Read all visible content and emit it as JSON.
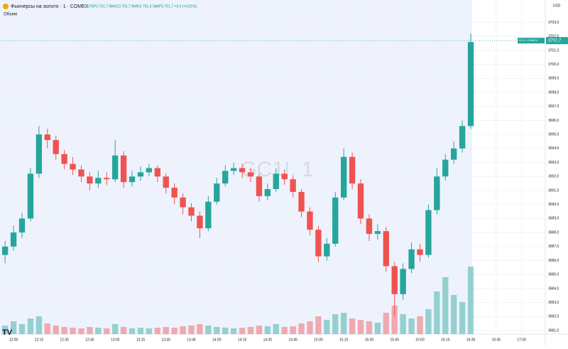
{
  "chart_data": {
    "type": "candlestick",
    "title": "Фьючерсы на золото · 1 · COMEX",
    "ohlc_legend": "ОТКР3 701,7  МАКС3 701,7  МИН3 701,0  ЗАКР3 701,7  +0,4 (+0,01%)",
    "volume_label": "Объем",
    "watermark": "GC1!, 1",
    "currency": "USD",
    "up_color": "#26a69a",
    "down_color": "#ef5350",
    "x": [
      715,
      720,
      725,
      730,
      735,
      740,
      745,
      750,
      755,
      760,
      765,
      770,
      775,
      780,
      785,
      790,
      795,
      800,
      805,
      810,
      815,
      820,
      825,
      830,
      835,
      840,
      845,
      850,
      855,
      860,
      865,
      870,
      875,
      880,
      885,
      890,
      895,
      900,
      905,
      910,
      915,
      920,
      925,
      930,
      935,
      940,
      945,
      950,
      955,
      960,
      965,
      970,
      975,
      980,
      985,
      990
    ],
    "open": [
      3686.4,
      3687.0,
      3688.0,
      3689.0,
      3692.2,
      3695.0,
      3694.6,
      3693.6,
      3692.9,
      3692.5,
      3692.0,
      3691.5,
      3691.9,
      3691.8,
      3693.5,
      3691.6,
      3692.0,
      3692.3,
      3692.6,
      3692.0,
      3691.2,
      3690.5,
      3689.8,
      3689.2,
      3688.3,
      3690.2,
      3691.5,
      3692.4,
      3692.6,
      3692.3,
      3692.0,
      3690.6,
      3691.1,
      3692.2,
      3691.8,
      3690.9,
      3689.5,
      3688.2,
      3686.3,
      3687.2,
      3690.5,
      3693.4,
      3691.5,
      3689.0,
      3687.9,
      3688.1,
      3685.6,
      3683.6,
      3685.4,
      3686.8,
      3686.4,
      3689.6,
      3692.0,
      3693.2,
      3694.0,
      3695.6
    ],
    "high": [
      3687.4,
      3688.5,
      3689.4,
      3692.6,
      3695.6,
      3695.4,
      3694.9,
      3693.9,
      3693.4,
      3692.8,
      3692.3,
      3692.4,
      3692.3,
      3694.6,
      3693.8,
      3692.4,
      3692.7,
      3692.9,
      3692.8,
      3692.2,
      3691.5,
      3690.8,
      3690.1,
      3689.5,
      3690.6,
      3691.9,
      3692.8,
      3693.0,
      3692.9,
      3692.6,
      3692.2,
      3691.5,
      3692.6,
      3692.5,
      3692.0,
      3691.1,
      3689.8,
      3688.5,
      3687.6,
      3690.9,
      3694.0,
      3693.7,
      3691.8,
      3689.3,
      3688.6,
      3688.4,
      3685.9,
      3685.8,
      3687.3,
      3687.2,
      3690.0,
      3692.6,
      3693.6,
      3694.5,
      3696.0,
      3702.2
    ],
    "low": [
      3685.8,
      3686.7,
      3687.6,
      3688.8,
      3691.9,
      3694.0,
      3693.2,
      3692.5,
      3692.1,
      3691.6,
      3691.0,
      3691.2,
      3691.4,
      3691.6,
      3691.2,
      3691.3,
      3691.7,
      3692.0,
      3691.6,
      3690.8,
      3690.0,
      3689.3,
      3688.8,
      3687.6,
      3688.1,
      3690.0,
      3691.3,
      3692.1,
      3691.9,
      3691.6,
      3690.2,
      3690.3,
      3690.9,
      3691.4,
      3690.5,
      3689.1,
      3687.8,
      3685.9,
      3686.0,
      3687.0,
      3690.3,
      3691.1,
      3688.6,
      3687.4,
      3687.5,
      3685.2,
      3682.0,
      3683.2,
      3685.1,
      3685.9,
      3686.2,
      3689.3,
      3691.7,
      3692.9,
      3693.7,
      3695.4
    ],
    "close": [
      3687.0,
      3688.0,
      3689.0,
      3692.2,
      3695.0,
      3694.6,
      3693.6,
      3692.9,
      3692.5,
      3692.0,
      3691.5,
      3691.9,
      3691.8,
      3693.5,
      3691.6,
      3692.0,
      3692.3,
      3692.6,
      3692.0,
      3691.2,
      3690.5,
      3689.8,
      3689.2,
      3688.3,
      3690.2,
      3691.5,
      3692.4,
      3692.6,
      3692.3,
      3692.0,
      3690.6,
      3691.1,
      3692.2,
      3691.8,
      3690.9,
      3689.5,
      3688.2,
      3686.3,
      3687.2,
      3690.5,
      3693.4,
      3691.5,
      3689.0,
      3687.9,
      3688.1,
      3685.6,
      3683.6,
      3685.4,
      3686.8,
      3686.4,
      3689.6,
      3692.0,
      3693.2,
      3694.0,
      3695.6,
      3701.6
    ],
    "volume": [
      12,
      18,
      14,
      22,
      25,
      15,
      12,
      10,
      9,
      8,
      10,
      9,
      8,
      14,
      10,
      8,
      9,
      8,
      9,
      10,
      9,
      11,
      12,
      14,
      12,
      10,
      9,
      8,
      9,
      10,
      12,
      11,
      14,
      10,
      11,
      15,
      18,
      25,
      20,
      28,
      30,
      22,
      20,
      18,
      16,
      30,
      40,
      28,
      22,
      25,
      35,
      60,
      80,
      55,
      45,
      95
    ],
    "last_price": 3701.7,
    "last_price_label": "3701,7",
    "last_price_symbol": "GC1!, COMEX",
    "xlim": [
      712,
      1034
    ],
    "ylim": [
      3680.75,
      3704.6
    ],
    "xticks": [
      {
        "value": 720,
        "label": "12:00"
      },
      {
        "value": 735,
        "label": "12:15"
      },
      {
        "value": 750,
        "label": "12:30"
      },
      {
        "value": 765,
        "label": "12:45"
      },
      {
        "value": 780,
        "label": "13:00"
      },
      {
        "value": 795,
        "label": "13:15"
      },
      {
        "value": 810,
        "label": "13:30"
      },
      {
        "value": 825,
        "label": "13:45"
      },
      {
        "value": 840,
        "label": "14:00"
      },
      {
        "value": 855,
        "label": "14:15"
      },
      {
        "value": 870,
        "label": "14:30"
      },
      {
        "value": 885,
        "label": "14:45"
      },
      {
        "value": 900,
        "label": "15:00"
      },
      {
        "value": 915,
        "label": "15:15"
      },
      {
        "value": 930,
        "label": "15:30"
      },
      {
        "value": 945,
        "label": "15:45"
      },
      {
        "value": 960,
        "label": "16:00"
      },
      {
        "value": 975,
        "label": "16:15"
      },
      {
        "value": 990,
        "label": "16:30"
      },
      {
        "value": 1005,
        "label": "16:45"
      },
      {
        "value": 1020,
        "label": "17:00"
      }
    ],
    "yticks": [
      {
        "value": 3703,
        "label": "3703,0"
      },
      {
        "value": 3702,
        "label": "3702,0"
      },
      {
        "value": 3701,
        "label": "3701,0"
      },
      {
        "value": 3700,
        "label": "3700,0"
      },
      {
        "value": 3699,
        "label": "3699,0"
      },
      {
        "value": 3698,
        "label": "3698,0"
      },
      {
        "value": 3697,
        "label": "3697,0"
      },
      {
        "value": 3696,
        "label": "3696,0"
      },
      {
        "value": 3695,
        "label": "3695,0"
      },
      {
        "value": 3694,
        "label": "3694,0"
      },
      {
        "value": 3693,
        "label": "3693,0"
      },
      {
        "value": 3692,
        "label": "3692,0"
      },
      {
        "value": 3691,
        "label": "3691,0"
      },
      {
        "value": 3690,
        "label": "3690,0"
      },
      {
        "value": 3689,
        "label": "3689,0"
      },
      {
        "value": 3688,
        "label": "3688,0"
      },
      {
        "value": 3687,
        "label": "3687,0"
      },
      {
        "value": 3686,
        "label": "3686,0"
      },
      {
        "value": 3685,
        "label": "3685,0"
      },
      {
        "value": 3684,
        "label": "3684,0"
      },
      {
        "value": 3683,
        "label": "3683,0"
      },
      {
        "value": 3682,
        "label": "3682,0"
      },
      {
        "value": 3681,
        "label": "3681,0"
      }
    ],
    "grid": true
  }
}
